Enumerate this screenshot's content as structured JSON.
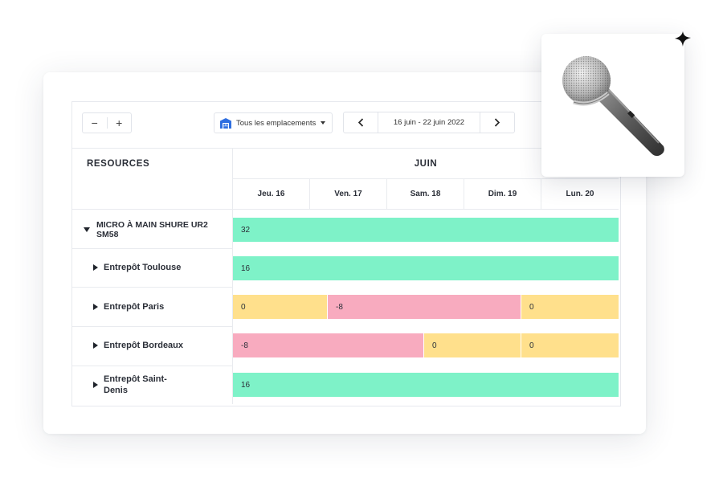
{
  "toolbar": {
    "zoom_out": "−",
    "zoom_in": "+",
    "location_label": "Tous les emplacements",
    "location_icon": "warehouse-icon",
    "date_range": "16 juin - 22 juin 2022",
    "prev_icon": "chevron-left-icon",
    "next_icon": "chevron-right-icon"
  },
  "grid": {
    "resources_header": "RESOURCES",
    "month": "JUIN",
    "days": [
      "Jeu. 16",
      "Ven. 17",
      "Sam. 18",
      "Dim. 19",
      "Lun. 20"
    ]
  },
  "rows": [
    {
      "label": "MICRO À MAIN SHURE UR2 SM58",
      "expanded": true,
      "segments": [
        {
          "value": "32",
          "status": "available"
        }
      ]
    },
    {
      "label": "Entrepôt Toulouse",
      "expanded": false,
      "segments": [
        {
          "value": "16",
          "status": "available"
        }
      ]
    },
    {
      "label": "Entrepôt Paris",
      "expanded": false,
      "segments": [
        {
          "value": "0",
          "status": "empty"
        },
        {
          "value": "-8",
          "status": "shortage"
        },
        {
          "value": "0",
          "status": "empty"
        }
      ]
    },
    {
      "label": "Entrepôt Bordeaux",
      "expanded": false,
      "segments": [
        {
          "value": "-8",
          "status": "shortage"
        },
        {
          "value": "0",
          "status": "empty"
        },
        {
          "value": "0",
          "status": "empty"
        }
      ]
    },
    {
      "label": "Entrepôt Saint-Denis",
      "expanded": false,
      "segments": [
        {
          "value": "16",
          "status": "available"
        }
      ]
    }
  ],
  "colors": {
    "available": "#7ef2c8",
    "empty": "#ffe08c",
    "shortage": "#f8abbf",
    "accent": "#2f6fe0"
  },
  "product_image": "microphone-image"
}
